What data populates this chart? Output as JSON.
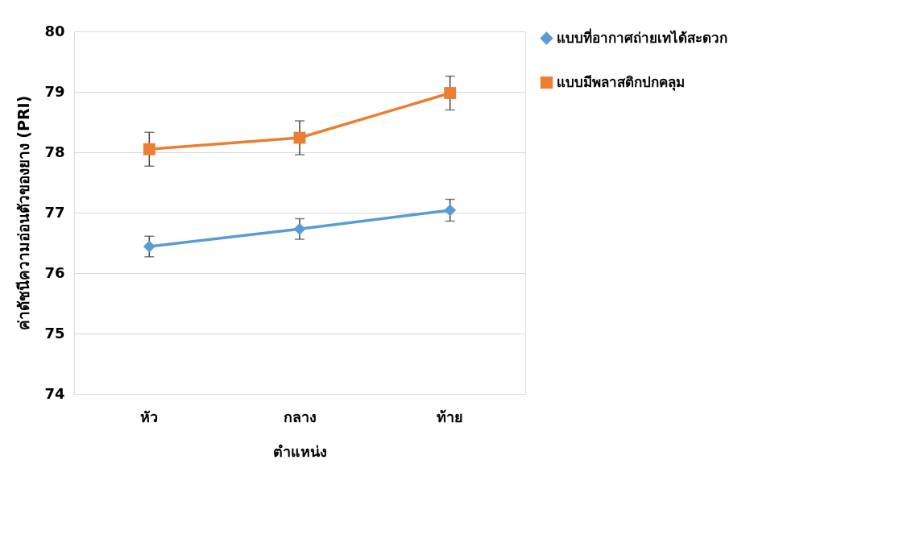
{
  "chart_data": {
    "type": "line",
    "xlabel": "ตำแหน่ง",
    "ylabel": "ค่าดัชนีความอ่อนตัวของยาง (PRI)",
    "categories": [
      "หัว",
      "กลาง",
      "ท้าย"
    ],
    "series": [
      {
        "name": "แบบที่อากาศถ่ายเทได้สะดวก",
        "color": "#5b9bd5",
        "marker": "diamond",
        "values": [
          76.44,
          76.73,
          77.04
        ],
        "errors": [
          0.17,
          0.17,
          0.18
        ]
      },
      {
        "name": "แบบมีพลาสติกปกคลุม",
        "color": "#ed7d31",
        "marker": "square",
        "values": [
          78.05,
          78.24,
          78.98
        ],
        "errors": [
          0.28,
          0.28,
          0.28
        ]
      }
    ],
    "ylim": [
      74,
      80
    ],
    "yticks": [
      74,
      75,
      76,
      77,
      78,
      79,
      80
    ],
    "grid": "y",
    "legend": "right"
  }
}
